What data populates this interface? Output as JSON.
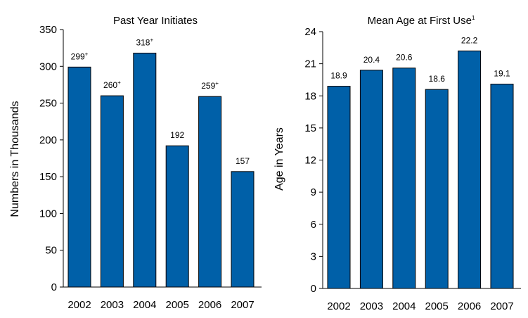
{
  "chart_data": [
    {
      "type": "bar",
      "title": "Past Year Initiates",
      "title_sup": "",
      "xlabel": "",
      "ylabel": "Numbers in Thousands",
      "categories": [
        "2002",
        "2003",
        "2004",
        "2005",
        "2006",
        "2007"
      ],
      "values": [
        299,
        260,
        318,
        192,
        259,
        157
      ],
      "data_labels": [
        "299",
        "260",
        "318",
        "192",
        "259",
        "157"
      ],
      "label_marks": [
        "+",
        "+",
        "+",
        "",
        "+",
        ""
      ],
      "ylim": [
        0,
        350
      ],
      "yticks": [
        "0",
        "50",
        "100",
        "150",
        "200",
        "250",
        "300",
        "350"
      ],
      "grid": false,
      "bar_color": "#0060A8"
    },
    {
      "type": "bar",
      "title": "Mean Age at First Use",
      "title_sup": "1",
      "xlabel": "",
      "ylabel": "Age in Years",
      "categories": [
        "2002",
        "2003",
        "2004",
        "2005",
        "2006",
        "2007"
      ],
      "values": [
        18.9,
        20.4,
        20.6,
        18.6,
        22.2,
        19.1
      ],
      "data_labels": [
        "18.9",
        "20.4",
        "20.6",
        "18.6",
        "22.2",
        "19.1"
      ],
      "label_marks": [
        "",
        "",
        "",
        "",
        "",
        ""
      ],
      "ylim": [
        0,
        24
      ],
      "yticks": [
        "0",
        "3",
        "6",
        "9",
        "12",
        "15",
        "18",
        "21",
        "24"
      ],
      "grid": false,
      "bar_color": "#0060A8"
    }
  ]
}
